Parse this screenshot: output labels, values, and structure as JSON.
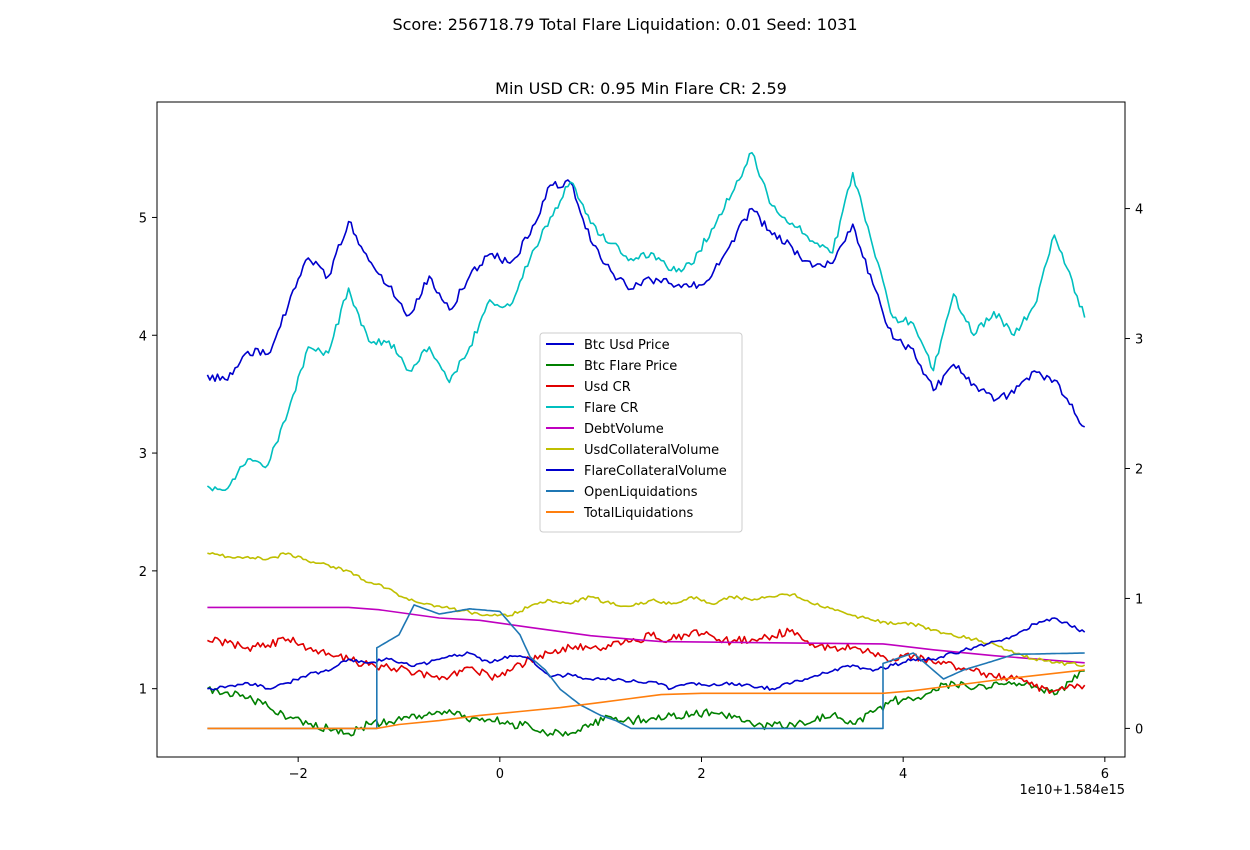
{
  "suptitle": "Score: 256718.79 Total Flare Liquidation: 0.01 Seed: 1031",
  "chart_data": {
    "type": "line",
    "title": "Min USD CR: 0.95 Min Flare CR: 2.59",
    "xlabel": "",
    "ylabel": "",
    "x_offset_label": "1e10+1.584e15",
    "xlim": [
      -3.4,
      6.2
    ],
    "ylim_left": [
      0.42,
      5.98
    ],
    "ylim_right": [
      -0.22,
      4.82
    ],
    "x_ticks": [
      -2,
      0,
      2,
      4,
      6
    ],
    "y_ticks_left": [
      1,
      2,
      3,
      4,
      5
    ],
    "y_ticks_right": [
      0,
      1,
      2,
      3,
      4
    ],
    "grid": false,
    "legend_position": "center",
    "series": [
      {
        "name": "Btc Usd Price",
        "color": "#0000cc",
        "axis": "right",
        "x": [
          -2.9,
          -2.7,
          -2.5,
          -2.3,
          -2.1,
          -1.9,
          -1.7,
          -1.5,
          -1.3,
          -1.1,
          -0.9,
          -0.7,
          -0.5,
          -0.3,
          -0.1,
          0.1,
          0.3,
          0.5,
          0.7,
          0.9,
          1.1,
          1.3,
          1.5,
          1.7,
          1.9,
          2.1,
          2.3,
          2.5,
          2.7,
          2.9,
          3.1,
          3.3,
          3.5,
          3.7,
          3.9,
          4.1,
          4.3,
          4.5,
          4.7,
          4.9,
          5.1,
          5.3,
          5.5,
          5.8
        ],
        "values": [
          2.72,
          2.68,
          2.9,
          2.88,
          3.25,
          3.62,
          3.48,
          3.9,
          3.6,
          3.4,
          3.18,
          3.48,
          3.22,
          3.48,
          3.65,
          3.58,
          3.8,
          4.18,
          4.2,
          3.75,
          3.52,
          3.38,
          3.45,
          3.42,
          3.4,
          3.48,
          3.75,
          4.0,
          3.8,
          3.7,
          3.55,
          3.58,
          3.88,
          3.42,
          3.0,
          2.92,
          2.6,
          2.8,
          2.65,
          2.52,
          2.58,
          2.75,
          2.68,
          2.32
        ]
      },
      {
        "name": "Btc Flare Price",
        "color": "#008000",
        "axis": "left",
        "x": [
          -2.9,
          -2.7,
          -2.5,
          -2.3,
          -2.1,
          -1.9,
          -1.7,
          -1.5,
          -1.3,
          -1.1,
          -0.9,
          -0.7,
          -0.5,
          -0.3,
          -0.1,
          0.1,
          0.3,
          0.5,
          0.7,
          0.9,
          1.1,
          1.3,
          1.5,
          1.7,
          1.9,
          2.1,
          2.3,
          2.5,
          2.7,
          2.9,
          3.1,
          3.3,
          3.5,
          3.7,
          3.9,
          4.1,
          4.3,
          4.5,
          4.7,
          4.9,
          5.1,
          5.3,
          5.5,
          5.8
        ],
        "values": [
          1.0,
          0.97,
          0.92,
          0.85,
          0.75,
          0.7,
          0.66,
          0.62,
          0.7,
          0.72,
          0.75,
          0.8,
          0.82,
          0.72,
          0.74,
          0.7,
          0.68,
          0.62,
          0.62,
          0.7,
          0.76,
          0.73,
          0.75,
          0.77,
          0.78,
          0.8,
          0.75,
          0.7,
          0.68,
          0.7,
          0.72,
          0.78,
          0.7,
          0.8,
          0.9,
          0.9,
          1.0,
          1.05,
          1.0,
          1.05,
          1.05,
          1.02,
          0.95,
          1.15
        ]
      },
      {
        "name": "Usd CR",
        "color": "#e00000",
        "axis": "left",
        "x": [
          -2.9,
          -2.7,
          -2.5,
          -2.3,
          -2.1,
          -1.9,
          -1.7,
          -1.5,
          -1.3,
          -1.1,
          -0.9,
          -0.7,
          -0.5,
          -0.3,
          -0.1,
          0.1,
          0.3,
          0.5,
          0.7,
          0.9,
          1.1,
          1.3,
          1.5,
          1.7,
          1.9,
          2.1,
          2.3,
          2.5,
          2.7,
          2.9,
          3.1,
          3.3,
          3.5,
          3.7,
          3.9,
          4.1,
          4.3,
          4.5,
          4.7,
          4.9,
          5.1,
          5.3,
          5.5,
          5.8
        ],
        "values": [
          1.41,
          1.39,
          1.35,
          1.37,
          1.42,
          1.34,
          1.3,
          1.25,
          1.2,
          1.18,
          1.15,
          1.12,
          1.1,
          1.18,
          1.1,
          1.15,
          1.25,
          1.3,
          1.35,
          1.34,
          1.36,
          1.4,
          1.45,
          1.42,
          1.48,
          1.45,
          1.4,
          1.42,
          1.45,
          1.5,
          1.38,
          1.35,
          1.35,
          1.3,
          1.25,
          1.28,
          1.22,
          1.2,
          1.15,
          1.1,
          1.08,
          1.02,
          0.98,
          1.03
        ]
      },
      {
        "name": "Flare CR",
        "color": "#00bfbf",
        "axis": "left",
        "x": [
          -2.9,
          -2.7,
          -2.5,
          -2.3,
          -2.1,
          -1.9,
          -1.7,
          -1.5,
          -1.3,
          -1.1,
          -0.9,
          -0.7,
          -0.5,
          -0.3,
          -0.1,
          0.1,
          0.3,
          0.5,
          0.7,
          0.9,
          1.1,
          1.3,
          1.5,
          1.7,
          1.9,
          2.1,
          2.3,
          2.5,
          2.7,
          2.9,
          3.1,
          3.3,
          3.5,
          3.7,
          3.9,
          4.1,
          4.3,
          4.5,
          4.7,
          4.9,
          5.1,
          5.3,
          5.5,
          5.8
        ],
        "values": [
          2.72,
          2.7,
          2.95,
          2.9,
          3.35,
          3.9,
          3.85,
          4.4,
          3.95,
          3.95,
          3.7,
          3.9,
          3.6,
          3.9,
          4.3,
          4.25,
          4.65,
          5.0,
          5.3,
          4.95,
          4.78,
          4.65,
          4.7,
          4.55,
          4.6,
          4.9,
          5.2,
          5.55,
          5.1,
          4.95,
          4.8,
          4.7,
          5.38,
          4.75,
          4.15,
          4.1,
          3.7,
          4.35,
          4.0,
          4.2,
          4.0,
          4.25,
          4.85,
          4.15
        ]
      },
      {
        "name": "DebtVolume",
        "color": "#bf00bf",
        "axis": "left",
        "x": [
          -2.9,
          -1.5,
          -1.2,
          -0.6,
          -0.2,
          0.3,
          0.9,
          1.3,
          1.6,
          3.8,
          4.3,
          4.9,
          5.8
        ],
        "values": [
          1.69,
          1.69,
          1.67,
          1.6,
          1.58,
          1.52,
          1.45,
          1.42,
          1.4,
          1.38,
          1.33,
          1.28,
          1.22
        ]
      },
      {
        "name": "UsdCollateralVolume",
        "color": "#bfbf00",
        "axis": "left",
        "x": [
          -2.9,
          -2.7,
          -2.5,
          -2.3,
          -2.1,
          -1.9,
          -1.7,
          -1.5,
          -1.3,
          -1.1,
          -0.9,
          -0.7,
          -0.5,
          -0.3,
          -0.1,
          0.1,
          0.3,
          0.5,
          0.7,
          0.9,
          1.1,
          1.3,
          1.5,
          1.7,
          1.9,
          2.1,
          2.3,
          2.5,
          2.7,
          2.9,
          3.1,
          3.3,
          3.5,
          3.7,
          3.9,
          4.1,
          4.3,
          4.5,
          4.7,
          4.9,
          5.1,
          5.3,
          5.5,
          5.8
        ],
        "values": [
          2.15,
          2.12,
          2.12,
          2.1,
          2.15,
          2.08,
          2.05,
          2.0,
          1.9,
          1.85,
          1.75,
          1.72,
          1.68,
          1.65,
          1.62,
          1.62,
          1.7,
          1.75,
          1.72,
          1.78,
          1.72,
          1.7,
          1.75,
          1.72,
          1.78,
          1.72,
          1.78,
          1.75,
          1.78,
          1.8,
          1.72,
          1.68,
          1.62,
          1.58,
          1.55,
          1.55,
          1.5,
          1.45,
          1.42,
          1.38,
          1.3,
          1.25,
          1.22,
          1.2
        ]
      },
      {
        "name": "FlareCollateralVolume",
        "color": "#0000cc",
        "axis": "left",
        "x": [
          -2.9,
          -2.7,
          -2.5,
          -2.3,
          -2.1,
          -1.9,
          -1.7,
          -1.5,
          -1.3,
          -1.1,
          -0.9,
          -0.7,
          -0.5,
          -0.3,
          -0.1,
          0.1,
          0.3,
          0.5,
          0.7,
          0.9,
          1.1,
          1.3,
          1.5,
          1.7,
          1.9,
          2.1,
          2.3,
          2.5,
          2.7,
          2.9,
          3.1,
          3.3,
          3.5,
          3.7,
          3.9,
          4.1,
          4.3,
          4.5,
          4.7,
          4.9,
          5.1,
          5.3,
          5.5,
          5.8
        ],
        "values": [
          1.0,
          1.02,
          1.05,
          1.0,
          1.05,
          1.12,
          1.15,
          1.25,
          1.22,
          1.25,
          1.2,
          1.22,
          1.28,
          1.3,
          1.22,
          1.28,
          1.25,
          1.1,
          1.12,
          1.08,
          1.08,
          1.06,
          1.06,
          1.0,
          1.05,
          1.03,
          1.05,
          1.02,
          1.0,
          1.05,
          1.1,
          1.15,
          1.2,
          1.15,
          1.2,
          1.25,
          1.25,
          1.3,
          1.35,
          1.4,
          1.45,
          1.55,
          1.6,
          1.48
        ]
      },
      {
        "name": "OpenLiquidations",
        "color": "#1f77b4",
        "axis": "right",
        "x": [
          -2.9,
          -1.22,
          -1.22,
          -1.0,
          -0.85,
          -0.6,
          -0.3,
          0.0,
          0.2,
          0.3,
          0.45,
          0.6,
          0.8,
          1.0,
          1.15,
          1.3,
          1.3,
          3.8,
          3.8,
          4.1,
          4.4,
          4.6,
          4.9,
          5.1,
          5.8
        ],
        "values": [
          0.0,
          0.0,
          0.62,
          0.72,
          0.95,
          0.88,
          0.92,
          0.9,
          0.72,
          0.55,
          0.45,
          0.3,
          0.18,
          0.1,
          0.06,
          0.0,
          0.0,
          0.0,
          0.5,
          0.58,
          0.38,
          0.45,
          0.52,
          0.57,
          0.58
        ]
      },
      {
        "name": "TotalLiquidations",
        "color": "#ff7f0e",
        "axis": "right",
        "x": [
          -2.9,
          -1.22,
          -1.0,
          -0.6,
          -0.2,
          0.2,
          0.6,
          1.0,
          1.3,
          1.6,
          2.0,
          3.8,
          4.1,
          4.5,
          5.0,
          5.8
        ],
        "values": [
          0.0,
          0.0,
          0.03,
          0.06,
          0.1,
          0.13,
          0.16,
          0.2,
          0.23,
          0.26,
          0.27,
          0.27,
          0.29,
          0.33,
          0.38,
          0.45
        ]
      }
    ]
  }
}
